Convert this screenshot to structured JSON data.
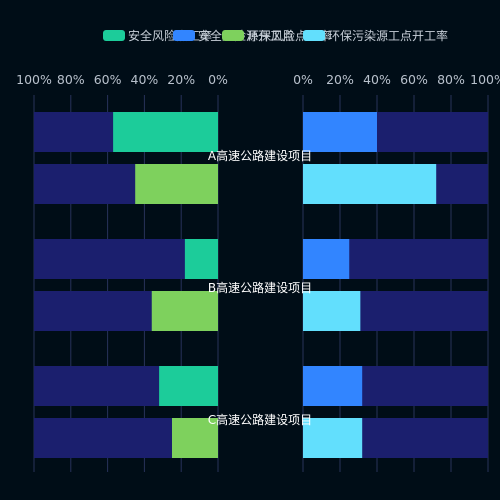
{
  "chart_data": {
    "type": "bar",
    "orientation": "horizontal-butterfly",
    "categories": [
      "A高速公路建设项目",
      "B高速公路建设项目",
      "C高速公路建设项目"
    ],
    "legend": [
      {
        "name": "安全风险点工率",
        "color": "#1ccc9a"
      },
      {
        "name": "安全风险源开工点",
        "color": "#3285ff"
      },
      {
        "name": "环保风险点工率",
        "color": "#7ed15d"
      },
      {
        "name": "环保污染源工点开工率",
        "color": "#62dffd"
      }
    ],
    "left_panel": {
      "axis_ticks": [
        "100%",
        "80%",
        "60%",
        "40%",
        "20%",
        "0%"
      ],
      "xlim": [
        0,
        100
      ],
      "direction": "right-to-left",
      "series": [
        {
          "name": "安全风险点工率",
          "color": "#1ccc9a",
          "values": [
            57,
            18,
            32
          ]
        },
        {
          "name": "环保风险点工率",
          "color": "#7ed15d",
          "values": [
            45,
            36,
            25
          ]
        }
      ]
    },
    "right_panel": {
      "axis_ticks": [
        "0%",
        "20%",
        "40%",
        "60%",
        "80%",
        "100%"
      ],
      "xlim": [
        0,
        100
      ],
      "direction": "left-to-right",
      "series": [
        {
          "name": "安全风险源开工点",
          "color": "#3285ff",
          "values": [
            40,
            25,
            32
          ]
        },
        {
          "name": "环保污染源工点开工率",
          "color": "#62dffd",
          "values": [
            72,
            31,
            32
          ]
        }
      ]
    },
    "background_bar_color": "#1b1f6e",
    "grid": true,
    "grid_color": "#27325a"
  }
}
